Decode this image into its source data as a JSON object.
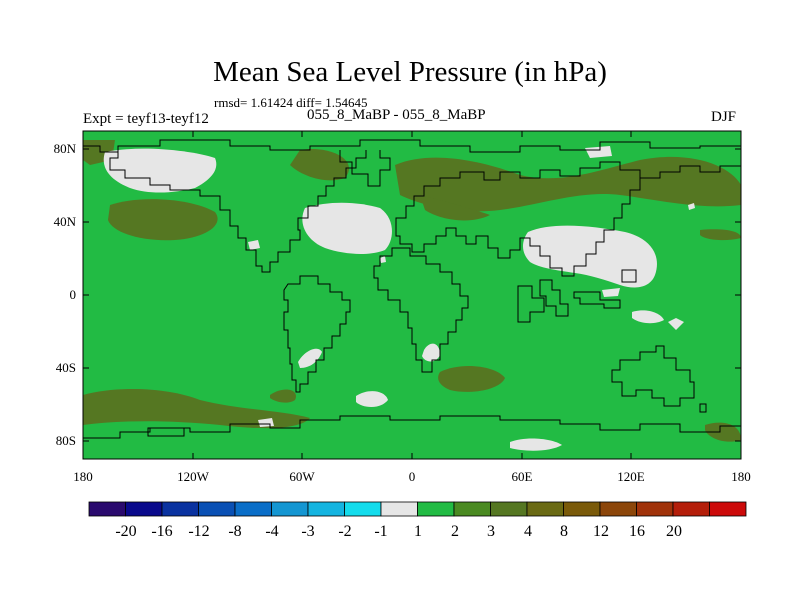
{
  "title": "Mean Sea Level Pressure (in hPa)",
  "stats": "rmsd= 1.61424 diff= 1.54645",
  "experiment_label": "Expt = teyf13-teyf12",
  "experiment_name": "055_8_MaBP - 055_8_MaBP",
  "season": "DJF",
  "map": {
    "lat_ticks": [
      "80N",
      "40N",
      "0",
      "40S",
      "80S"
    ],
    "lon_ticks": [
      "180",
      "120W",
      "60W",
      "0",
      "60E",
      "120E",
      "180"
    ],
    "colors": {
      "background_field": "#22bb44",
      "positive_anomaly": "#557722",
      "near_zero": "#e6e6e6",
      "coastline": "#000000"
    }
  },
  "colorbar": {
    "colors": [
      "#2a0a6e",
      "#0a0a8c",
      "#0a32a0",
      "#0a50b4",
      "#0a6ec8",
      "#1496d2",
      "#14b4e0",
      "#14dcec",
      "#e6e6e6",
      "#22bb44",
      "#4a8a22",
      "#557722",
      "#6a6a14",
      "#7a5a0a",
      "#8c460a",
      "#a0320a",
      "#b41e0a",
      "#cc0a0a"
    ],
    "labels": [
      "-20",
      "-16",
      "-12",
      "-8",
      "-4",
      "-3",
      "-2",
      "-1",
      "1",
      "2",
      "3",
      "4",
      "8",
      "12",
      "16",
      "20"
    ]
  }
}
